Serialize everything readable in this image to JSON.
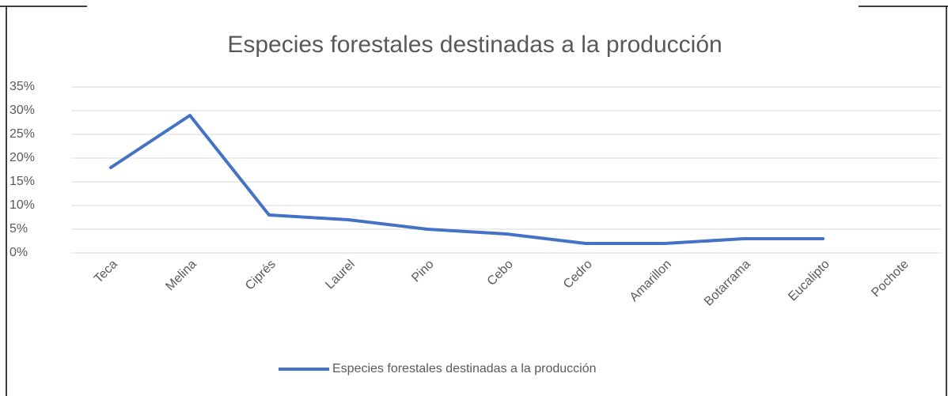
{
  "chart_data": {
    "type": "line",
    "title": "Especies forestales destinadas a la producción",
    "categories": [
      "Teca",
      "Melina",
      "Ciprés",
      "Laurel",
      "Pino",
      "Cebo",
      "Cedro",
      "Amarillon",
      "Botarrama",
      "Eucalipto",
      "Pochote"
    ],
    "series": [
      {
        "name": "Especies forestales destinadas a la producción",
        "color": "#4472c4",
        "values": [
          18,
          29,
          8,
          7,
          5,
          4,
          2,
          2,
          3,
          3,
          null
        ]
      }
    ],
    "ylim": [
      0,
      35
    ],
    "yticks": [
      {
        "value": 0,
        "label": "0%"
      },
      {
        "value": 5,
        "label": "5%"
      },
      {
        "value": 10,
        "label": "10%"
      },
      {
        "value": 15,
        "label": "15%"
      },
      {
        "value": 20,
        "label": "20%"
      },
      {
        "value": 25,
        "label": "25%"
      },
      {
        "value": 30,
        "label": "30%"
      },
      {
        "value": 35,
        "label": "35%"
      }
    ],
    "grid": true,
    "legend": "bottom"
  }
}
